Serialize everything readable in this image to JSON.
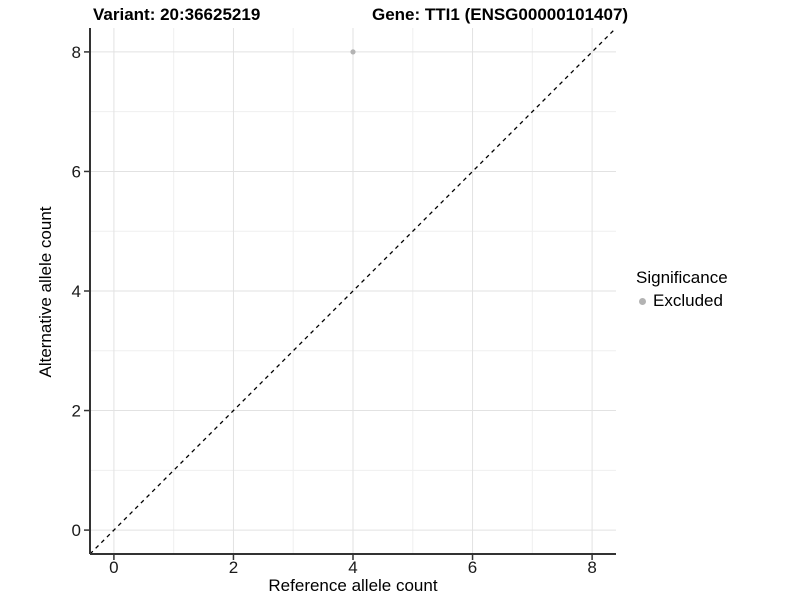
{
  "titles": {
    "variant": "Variant: 20:36625219",
    "gene": "Gene: TTI1 (ENSG00000101407)"
  },
  "chart_data": {
    "type": "scatter",
    "xlabel": "Reference allele count",
    "ylabel": "Alternative allele count",
    "xlim": [
      -0.4,
      8.4
    ],
    "ylim": [
      -0.4,
      8.4
    ],
    "x_ticks": [
      0,
      2,
      4,
      6,
      8
    ],
    "y_ticks": [
      0,
      2,
      4,
      6,
      8
    ],
    "x_minor_ticks": [
      1,
      3,
      5,
      7
    ],
    "y_minor_ticks": [
      1,
      3,
      5,
      7
    ],
    "grid": "major-and-minor",
    "series": [
      {
        "name": "Excluded",
        "color": "#b3b3b3",
        "points": [
          {
            "x": 4,
            "y": 8
          }
        ]
      }
    ],
    "reference_line": {
      "description": "identity line y = x",
      "style": "dashed",
      "color": "#000000"
    },
    "legend": {
      "title": "Significance",
      "position": "right",
      "items": [
        {
          "label": "Excluded",
          "color": "#b3b3b3"
        }
      ]
    }
  },
  "colors": {
    "background": "#ffffff",
    "major_grid": "#e2e2e2",
    "minor_grid": "#efefef",
    "axis_line": "#333333",
    "tick_label": "#1a1a1a",
    "point": "#b3b3b3"
  }
}
